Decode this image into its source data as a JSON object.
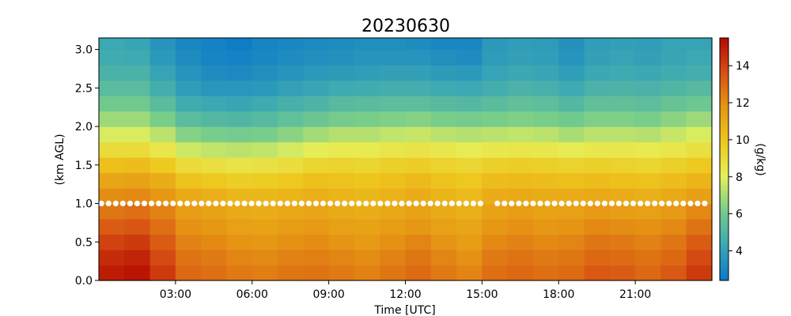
{
  "chart_data": {
    "type": "heatmap",
    "title": "20230630",
    "xlabel": "Time [UTC]",
    "ylabel": "(km AGL)",
    "colorbar_label": "(g/kg)",
    "x_unit": "hours UTC",
    "xlim": [
      0,
      24
    ],
    "ylim": [
      0.0,
      3.15
    ],
    "x_ticks": [
      3,
      6,
      9,
      12,
      15,
      18,
      21
    ],
    "x_tick_labels": [
      "03:00",
      "06:00",
      "09:00",
      "12:00",
      "15:00",
      "18:00",
      "21:00"
    ],
    "y_ticks": [
      0.0,
      0.5,
      1.0,
      1.5,
      2.0,
      2.5,
      3.0
    ],
    "y_tick_labels": [
      "0.0",
      "0.5",
      "1.0",
      "1.5",
      "2.0",
      "2.5",
      "3.0"
    ],
    "color_range": [
      2.4,
      15.5
    ],
    "colorbar_ticks": [
      4,
      6,
      8,
      10,
      12,
      14
    ],
    "colorbar_tick_labels": [
      "4",
      "6",
      "8",
      "10",
      "12",
      "14"
    ],
    "colormap": [
      "#0a78c8",
      "#3aa7b4",
      "#75cc8c",
      "#e6f05a",
      "#eec81e",
      "#e69614",
      "#d75014",
      "#b40a00"
    ],
    "grid": false,
    "height_levels_km": [
      0.1,
      0.3,
      0.5,
      0.7,
      0.9,
      1.1,
      1.3,
      1.5,
      1.7,
      1.9,
      2.1,
      2.3,
      2.5,
      2.7,
      2.9,
      3.1
    ],
    "profile_hours": [
      0.5,
      1.5,
      2.5,
      3.5,
      4.5,
      5.5,
      6.5,
      7.5,
      8.5,
      9.5,
      10.5,
      11.5,
      12.5,
      13.5,
      14.5,
      15.5,
      16.5,
      17.5,
      18.5,
      19.5,
      20.5,
      21.5,
      22.5,
      23.5
    ],
    "profiles_g_per_kg": [
      [
        15.0,
        14.6,
        14.0,
        13.3,
        12.6,
        12.0,
        11.2,
        10.2,
        9.0,
        7.8,
        6.8,
        6.0,
        5.3,
        4.8,
        4.5,
        4.3
      ],
      [
        15.2,
        14.8,
        14.2,
        13.5,
        12.8,
        12.1,
        11.3,
        10.3,
        9.0,
        7.8,
        6.8,
        6.0,
        5.3,
        4.8,
        4.4,
        4.2
      ],
      [
        14.2,
        13.8,
        13.3,
        12.8,
        12.3,
        11.7,
        10.9,
        9.8,
        8.5,
        7.3,
        6.2,
        5.3,
        4.6,
        4.1,
        3.7,
        3.5
      ],
      [
        13.0,
        12.7,
        12.3,
        11.9,
        11.5,
        11.0,
        10.1,
        9.0,
        7.6,
        6.4,
        5.3,
        4.5,
        3.9,
        3.5,
        3.2,
        3.0
      ],
      [
        12.8,
        12.5,
        12.1,
        11.7,
        11.3,
        10.8,
        9.9,
        8.8,
        7.4,
        6.2,
        5.1,
        4.3,
        3.6,
        3.2,
        2.9,
        2.8
      ],
      [
        12.5,
        12.2,
        11.8,
        11.4,
        11.0,
        10.5,
        9.6,
        8.6,
        7.3,
        6.1,
        5.0,
        4.2,
        3.6,
        3.1,
        2.8,
        2.6
      ],
      [
        12.4,
        12.1,
        11.7,
        11.3,
        10.9,
        10.5,
        9.7,
        8.7,
        7.4,
        6.2,
        5.2,
        4.4,
        3.7,
        3.3,
        3.0,
        2.9
      ],
      [
        12.6,
        12.3,
        11.9,
        11.5,
        11.1,
        10.6,
        9.9,
        8.9,
        7.7,
        6.5,
        5.5,
        4.7,
        4.0,
        3.5,
        3.2,
        3.0
      ],
      [
        12.7,
        12.4,
        12.0,
        11.6,
        11.2,
        10.8,
        10.2,
        9.3,
        8.1,
        6.9,
        5.8,
        4.9,
        4.2,
        3.7,
        3.3,
        3.1
      ],
      [
        12.5,
        12.2,
        11.8,
        11.4,
        11.0,
        10.6,
        10.1,
        9.4,
        8.3,
        7.2,
        6.1,
        5.2,
        4.4,
        3.8,
        3.4,
        3.2
      ],
      [
        12.3,
        12.0,
        11.6,
        11.3,
        10.9,
        10.5,
        10.0,
        9.3,
        8.3,
        7.2,
        6.2,
        5.3,
        4.5,
        3.9,
        3.5,
        3.3
      ],
      [
        12.6,
        12.3,
        11.9,
        11.5,
        11.1,
        10.7,
        10.2,
        9.5,
        8.5,
        7.4,
        6.3,
        5.4,
        4.6,
        4.0,
        3.5,
        3.3
      ],
      [
        12.9,
        12.6,
        12.2,
        11.7,
        11.3,
        10.9,
        10.4,
        9.6,
        8.6,
        7.5,
        6.4,
        5.4,
        4.6,
        4.0,
        3.5,
        3.2
      ],
      [
        12.5,
        12.2,
        11.8,
        11.4,
        11.0,
        10.6,
        10.1,
        9.4,
        8.4,
        7.3,
        6.2,
        5.2,
        4.4,
        3.8,
        3.3,
        3.0
      ],
      [
        12.2,
        11.9,
        11.5,
        11.2,
        10.8,
        10.4,
        9.9,
        9.2,
        8.2,
        7.2,
        6.1,
        5.1,
        4.3,
        3.7,
        3.2,
        3.0
      ],
      [
        12.8,
        12.5,
        12.1,
        11.7,
        11.3,
        10.9,
        10.3,
        9.5,
        8.4,
        7.3,
        6.2,
        5.3,
        4.6,
        4.1,
        3.8,
        3.7
      ],
      [
        13.0,
        12.7,
        12.3,
        11.9,
        11.5,
        11.0,
        10.4,
        9.6,
        8.5,
        7.4,
        6.3,
        5.5,
        4.8,
        4.3,
        4.0,
        3.9
      ],
      [
        12.8,
        12.5,
        12.1,
        11.7,
        11.3,
        10.9,
        10.3,
        9.5,
        8.4,
        7.3,
        6.2,
        5.4,
        4.7,
        4.2,
        3.9,
        3.8
      ],
      [
        12.9,
        12.6,
        12.2,
        11.8,
        11.4,
        10.9,
        10.2,
        9.4,
        8.2,
        7.0,
        6.0,
        5.1,
        4.4,
        3.9,
        3.5,
        3.4
      ],
      [
        13.4,
        13.0,
        12.6,
        12.1,
        11.6,
        11.0,
        10.3,
        9.5,
        8.4,
        7.3,
        6.3,
        5.5,
        4.8,
        4.3,
        4.0,
        3.9
      ],
      [
        13.3,
        12.9,
        12.5,
        12.0,
        11.5,
        10.9,
        10.2,
        9.4,
        8.4,
        7.3,
        6.3,
        5.5,
        4.9,
        4.4,
        4.1,
        4.0
      ],
      [
        13.0,
        12.7,
        12.3,
        11.9,
        11.4,
        10.8,
        10.1,
        9.3,
        8.3,
        7.2,
        6.2,
        5.4,
        4.8,
        4.3,
        4.0,
        3.9
      ],
      [
        13.4,
        13.0,
        12.6,
        12.1,
        11.6,
        11.0,
        10.3,
        9.5,
        8.5,
        7.5,
        6.5,
        5.7,
        5.0,
        4.5,
        4.2,
        4.1
      ],
      [
        14.2,
        13.8,
        13.3,
        12.7,
        12.1,
        11.4,
        10.6,
        9.8,
        8.8,
        7.8,
        6.8,
        5.9,
        5.2,
        4.6,
        4.3,
        4.1
      ]
    ],
    "marker_line": {
      "height_km": 1.0,
      "color": "#ffffff",
      "segments_hours": [
        [
          0.1,
          15.0
        ],
        [
          15.6,
          23.9
        ]
      ],
      "spacing_hours": 0.28
    }
  }
}
